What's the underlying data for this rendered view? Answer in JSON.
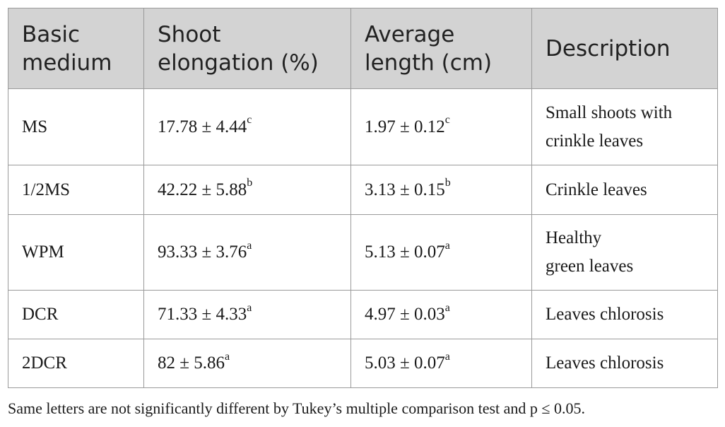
{
  "table": {
    "headers": [
      [
        "Basic",
        "medium"
      ],
      [
        "Shoot",
        "elongation (%)"
      ],
      [
        "Average",
        "length (cm)"
      ],
      [
        "Description"
      ]
    ],
    "rows": [
      {
        "medium": "MS",
        "elongation": "17.78 ± 4.44",
        "elongation_sup": "c",
        "length": "1.97 ± 0.12",
        "length_sup": "c",
        "description": [
          "Small shoots with",
          "crinkle leaves"
        ]
      },
      {
        "medium": "1/2MS",
        "elongation": "42.22 ± 5.88",
        "elongation_sup": "b",
        "length": "3.13 ± 0.15",
        "length_sup": "b",
        "description": [
          "Crinkle leaves"
        ]
      },
      {
        "medium": "WPM",
        "elongation": "93.33 ± 3.76",
        "elongation_sup": "a",
        "length": "5.13 ± 0.07",
        "length_sup": "a",
        "description": [
          "Healthy",
          "green leaves"
        ]
      },
      {
        "medium": "DCR",
        "elongation": "71.33 ± 4.33",
        "elongation_sup": "a",
        "length": "4.97 ± 0.03",
        "length_sup": "a",
        "description": [
          "Leaves chlorosis"
        ]
      },
      {
        "medium": "2DCR",
        "elongation": "82 ± 5.86",
        "elongation_sup": "a",
        "length": "5.03 ± 0.07",
        "length_sup": "a",
        "description": [
          "Leaves chlorosis"
        ]
      }
    ]
  },
  "footnote": "Same letters are not significantly different by Tukey’s multiple comparison test and p ≤ 0.05.",
  "colors": {
    "header_background": "#d3d3d3",
    "border": "#9a9a9a",
    "text": "#1a1a1a"
  }
}
